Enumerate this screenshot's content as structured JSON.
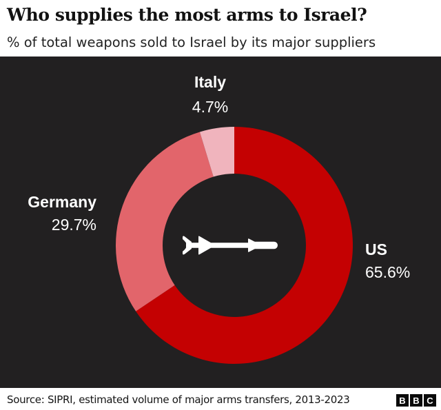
{
  "header": {
    "title": "Who supplies the most arms to Israel?",
    "subtitle": "% of total weapons sold to Israel by its major suppliers"
  },
  "chart_data": {
    "type": "pie",
    "subtype": "donut",
    "categories": [
      "US",
      "Germany",
      "Italy"
    ],
    "values": [
      65.6,
      29.7,
      4.7
    ],
    "value_labels": [
      "65.6%",
      "29.7%",
      "4.7%"
    ],
    "colors": [
      "#c40102",
      "#e2656b",
      "#f0b4bd"
    ],
    "start_angle_deg": 0,
    "direction": "clockwise",
    "center_icon": "missile-icon",
    "background": "#222021",
    "label_color": "#ffffff"
  },
  "footer": {
    "source": "Source: SIPRI, estimated volume of major arms transfers, 2013-2023",
    "logo_letters": [
      "B",
      "B",
      "C"
    ]
  }
}
